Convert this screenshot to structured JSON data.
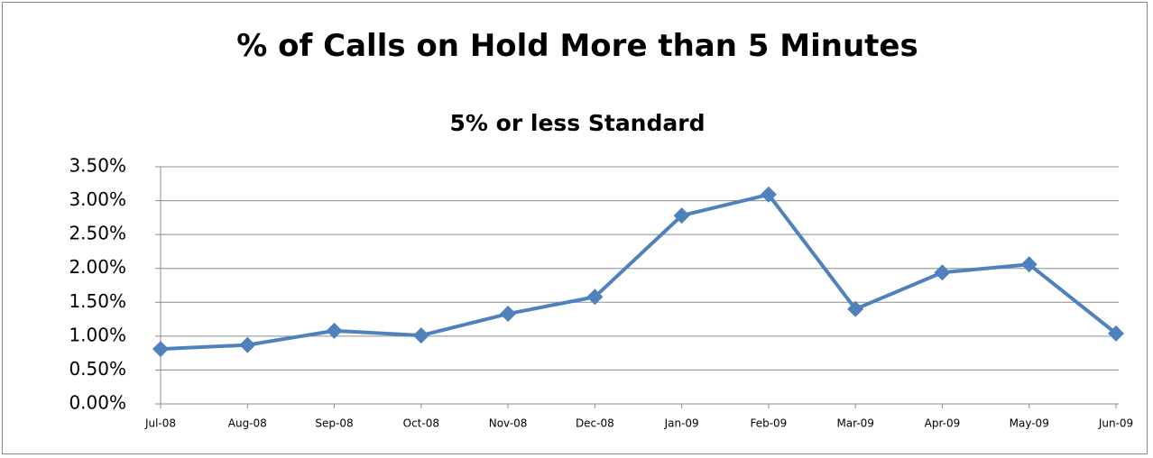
{
  "chart_data": {
    "type": "line",
    "title": "% of Calls on Hold More than 5 Minutes",
    "subtitle": "5% or less Standard",
    "categories": [
      "Jul-08",
      "Aug-08",
      "Sep-08",
      "Oct-08",
      "Nov-08",
      "Dec-08",
      "Jan-09",
      "Feb-09",
      "Mar-09",
      "Apr-09",
      "May-09",
      "Jun-09"
    ],
    "values": [
      0.81,
      0.87,
      1.08,
      1.01,
      1.33,
      1.58,
      2.78,
      3.09,
      1.4,
      1.94,
      2.06,
      1.04
    ],
    "color": "#4f81bd",
    "ylim": [
      0,
      3.5
    ],
    "yticks": [
      {
        "value": 0,
        "label": "0.00%"
      },
      {
        "value": 0.5,
        "label": "0.50%"
      },
      {
        "value": 1,
        "label": "1.00%"
      },
      {
        "value": 1.5,
        "label": "1.50%"
      },
      {
        "value": 2,
        "label": "2.00%"
      },
      {
        "value": 2.5,
        "label": "2.50%"
      },
      {
        "value": 3,
        "label": "3.00%"
      },
      {
        "value": 3.5,
        "label": "3.50%"
      }
    ],
    "grid": true
  }
}
